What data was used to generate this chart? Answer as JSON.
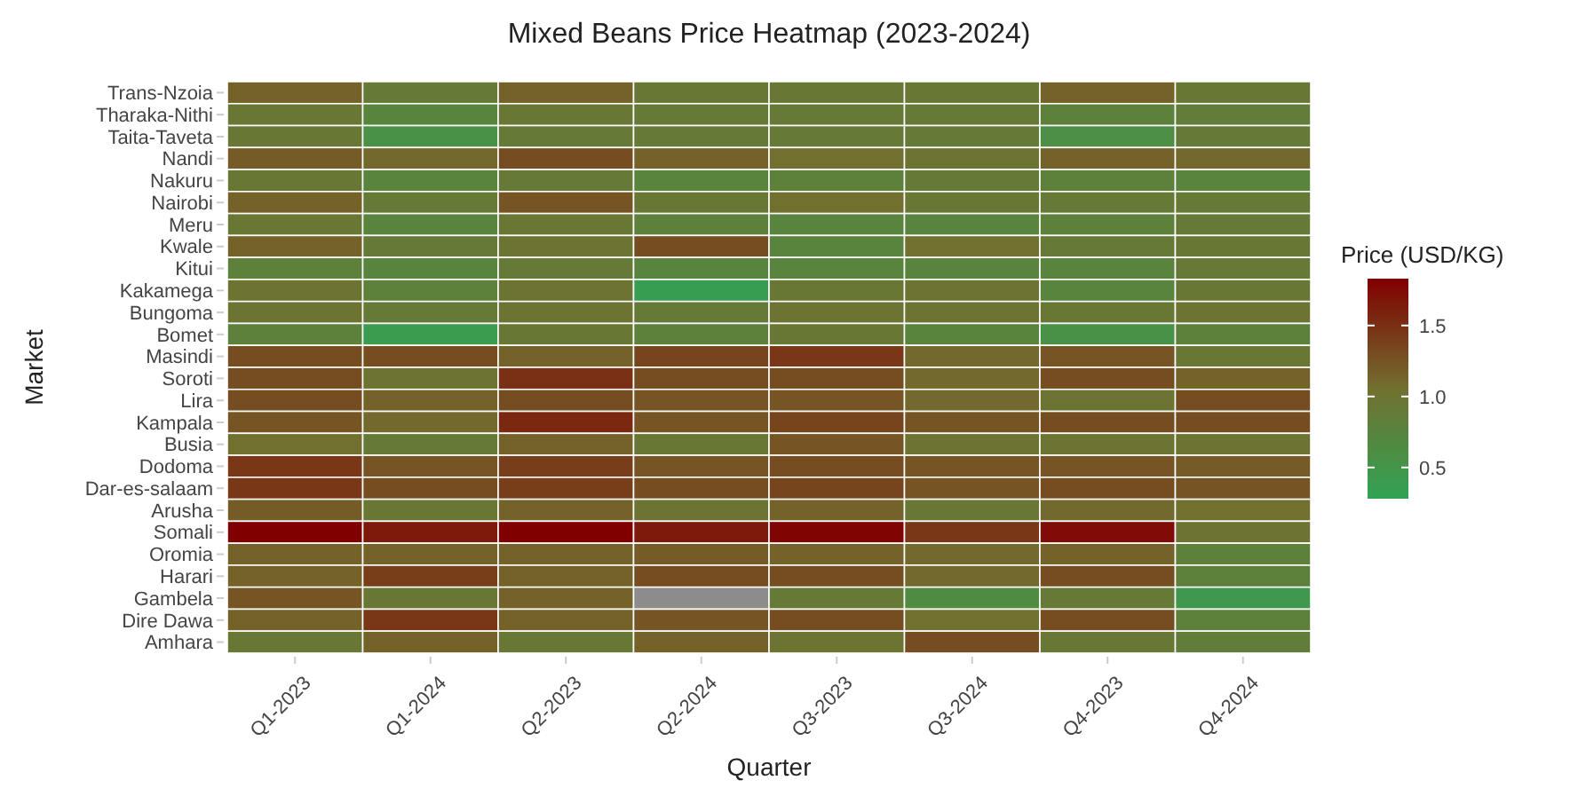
{
  "chart_data": {
    "type": "heatmap",
    "title": "Mixed Beans Price Heatmap (2023-2024)",
    "xlabel": "Quarter",
    "ylabel": "Market",
    "clabel": "Price (USD/KG)",
    "categories": [
      "Q1-2023",
      "Q1-2024",
      "Q2-2023",
      "Q2-2024",
      "Q3-2023",
      "Q3-2024",
      "Q4-2023",
      "Q4-2024"
    ],
    "y_categories": [
      "Trans-Nzoia",
      "Tharaka-Nithi",
      "Taita-Taveta",
      "Nandi",
      "Nakuru",
      "Nairobi",
      "Meru",
      "Kwale",
      "Kitui",
      "Kakamega",
      "Bungoma",
      "Bomet",
      "Masindi",
      "Soroti",
      "Lira",
      "Kampala",
      "Busia",
      "Dodoma",
      "Dar-es-salaam",
      "Arusha",
      "Somali",
      "Oromia",
      "Harari",
      "Gambela",
      "Dire Dawa",
      "Amhara"
    ],
    "cells": [
      [
        1.15,
        0.9,
        1.15,
        0.95,
        0.95,
        0.95,
        1.15,
        0.95
      ],
      [
        0.95,
        0.75,
        0.95,
        0.9,
        0.9,
        0.9,
        0.8,
        0.85
      ],
      [
        0.95,
        0.55,
        0.9,
        0.9,
        0.9,
        0.9,
        0.6,
        0.9
      ],
      [
        1.2,
        1.1,
        1.3,
        1.15,
        1.05,
        1.0,
        1.15,
        1.1
      ],
      [
        0.95,
        0.75,
        0.9,
        0.75,
        0.8,
        0.9,
        0.8,
        0.75
      ],
      [
        1.15,
        0.9,
        1.25,
        0.95,
        1.05,
        0.95,
        0.9,
        0.9
      ],
      [
        0.95,
        0.75,
        0.95,
        0.8,
        0.75,
        0.75,
        0.8,
        0.9
      ],
      [
        1.15,
        0.9,
        1.0,
        1.3,
        0.75,
        1.05,
        0.9,
        0.95
      ],
      [
        0.8,
        0.75,
        0.9,
        0.75,
        0.75,
        0.75,
        0.75,
        0.9
      ],
      [
        1.0,
        0.8,
        1.0,
        0.35,
        0.95,
        1.0,
        0.75,
        0.95
      ],
      [
        1.0,
        0.9,
        1.0,
        0.9,
        1.0,
        1.0,
        0.95,
        1.0
      ],
      [
        0.8,
        0.4,
        0.95,
        0.8,
        0.95,
        0.75,
        0.55,
        0.8
      ],
      [
        1.3,
        1.3,
        1.15,
        1.35,
        1.45,
        1.1,
        1.25,
        0.95
      ],
      [
        1.3,
        1.0,
        1.5,
        1.3,
        1.3,
        1.1,
        1.3,
        1.15
      ],
      [
        1.3,
        1.15,
        1.3,
        1.25,
        1.25,
        1.1,
        1.0,
        1.3
      ],
      [
        1.25,
        1.1,
        1.55,
        1.25,
        1.35,
        1.25,
        1.3,
        1.3
      ],
      [
        1.05,
        0.9,
        1.15,
        0.95,
        1.25,
        1.0,
        1.0,
        1.0
      ],
      [
        1.45,
        1.25,
        1.4,
        1.25,
        1.3,
        1.25,
        1.25,
        1.2
      ],
      [
        1.45,
        1.3,
        1.4,
        1.3,
        1.35,
        1.25,
        1.3,
        1.25
      ],
      [
        1.2,
        0.95,
        1.15,
        1.0,
        1.15,
        0.95,
        1.1,
        1.05
      ],
      [
        1.83,
        1.65,
        1.83,
        1.65,
        1.8,
        1.45,
        1.75,
        1.0
      ],
      [
        1.15,
        1.15,
        1.15,
        1.2,
        1.15,
        1.1,
        1.15,
        0.8
      ],
      [
        1.15,
        1.4,
        1.15,
        1.3,
        1.3,
        1.1,
        1.3,
        0.8
      ],
      [
        1.25,
        0.95,
        1.15,
        null,
        0.9,
        0.65,
        0.9,
        0.45
      ],
      [
        1.15,
        1.45,
        1.15,
        1.25,
        1.3,
        1.05,
        1.3,
        0.8
      ],
      [
        0.95,
        1.15,
        0.95,
        1.15,
        1.0,
        1.3,
        0.95,
        0.85
      ]
    ],
    "clim": [
      0.28,
      1.83
    ],
    "cticks": [
      0.5,
      {
        "value": 1,
        "label": "1.0"
      },
      1.5
    ]
  }
}
